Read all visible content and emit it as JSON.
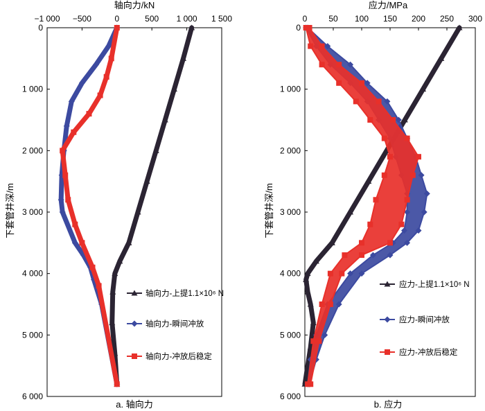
{
  "chart_data": [
    {
      "type": "line",
      "panel": "a",
      "title": "轴向力/kN",
      "xlabel": "轴向力/kN",
      "ylabel": "下套管井深/m",
      "caption": "a. 轴向力",
      "x_ticks": [
        "−1 000",
        "−500",
        "0",
        "500",
        "1 000",
        "1 500"
      ],
      "x_tick_values": [
        -1000,
        -500,
        0,
        500,
        1000,
        1500
      ],
      "y_ticks": [
        "0",
        "1 000",
        "2 000",
        "3 000",
        "4 000",
        "5 000",
        "6 000"
      ],
      "y_tick_values": [
        0,
        1000,
        2000,
        3000,
        4000,
        5000,
        6000
      ],
      "xlim": [
        -1000,
        1500
      ],
      "ylim": [
        0,
        6000
      ],
      "y_inverted": true,
      "x_axis_position": "top",
      "legend_position": "bottom-right",
      "series": [
        {
          "name": "轴向力-上提1.1×10⁶ N",
          "color": "#2b2433",
          "marker": "triangle",
          "x": [
            1070,
            950,
            820,
            690,
            560,
            430,
            300,
            170,
            40,
            -30,
            -60,
            -70,
            -30,
            0
          ],
          "y": [
            0,
            500,
            1000,
            1500,
            2000,
            2500,
            3000,
            3500,
            3800,
            4000,
            4300,
            4800,
            5300,
            5800
          ]
        },
        {
          "name": "轴向力-瞬间冲放",
          "color": "#3c4aa0",
          "marker": "diamond",
          "x": [
            0,
            -120,
            -300,
            -500,
            -650,
            -720,
            -760,
            -790,
            -800,
            -780,
            -600,
            -480,
            -380,
            -330,
            -220,
            0
          ],
          "y": [
            0,
            300,
            600,
            900,
            1200,
            1600,
            2000,
            2400,
            2800,
            3000,
            3500,
            3700,
            3900,
            4100,
            4500,
            5800
          ]
        },
        {
          "name": "轴向力-冲放后稳定",
          "color": "#e8302a",
          "marker": "square",
          "x": [
            0,
            -80,
            -150,
            -240,
            -400,
            -620,
            -780,
            -740,
            -700,
            -600,
            -500,
            -350,
            -260,
            0
          ],
          "y": [
            0,
            500,
            800,
            1100,
            1400,
            1700,
            2000,
            2400,
            2800,
            3200,
            3500,
            3900,
            4200,
            5800
          ]
        }
      ]
    },
    {
      "type": "line",
      "panel": "b",
      "title": "应力/MPa",
      "xlabel": "应力/MPa",
      "ylabel": "下套管井深/m",
      "caption": "b. 应力",
      "x_ticks": [
        "0",
        "50",
        "100",
        "150",
        "200",
        "250",
        "300"
      ],
      "x_tick_values": [
        0,
        50,
        100,
        150,
        200,
        250,
        300
      ],
      "y_ticks": [
        "0",
        "1 000",
        "2 000",
        "3 000",
        "4 000",
        "5 000",
        "6 000"
      ],
      "y_tick_values": [
        0,
        1000,
        2000,
        3000,
        4000,
        5000,
        6000
      ],
      "xlim": [
        0,
        300
      ],
      "ylim": [
        0,
        6000
      ],
      "y_inverted": true,
      "x_axis_position": "top",
      "legend_position": "bottom-right",
      "series": [
        {
          "name": "应力-上提1.1×10⁶ N",
          "color": "#2b2433",
          "marker": "triangle",
          "x": [
            272,
            240,
            208,
            176,
            144,
            112,
            80,
            48,
            20,
            5,
            2,
            5,
            10,
            15,
            10,
            5,
            0
          ],
          "y": [
            0,
            500,
            1000,
            1500,
            2000,
            2500,
            3000,
            3500,
            3800,
            4000,
            4100,
            4300,
            4500,
            4800,
            5200,
            5500,
            5800
          ]
        },
        {
          "name": "应力-瞬间冲放",
          "color": "#3c4aa0",
          "marker": "diamond",
          "x_left": [
            2,
            20,
            45,
            80,
            110,
            130,
            150,
            160,
            170,
            180,
            180,
            175,
            155,
            120,
            80,
            40,
            20,
            10,
            5
          ],
          "x_right": [
            5,
            40,
            80,
            110,
            145,
            165,
            180,
            195,
            205,
            215,
            210,
            200,
            180,
            150,
            100,
            60,
            35,
            20,
            8
          ],
          "y": [
            0,
            300,
            600,
            900,
            1200,
            1500,
            1800,
            2100,
            2400,
            2700,
            3000,
            3300,
            3500,
            3700,
            4000,
            4500,
            5000,
            5400,
            5800
          ]
        },
        {
          "name": "应力-冲放后稳定",
          "color": "#e8302a",
          "marker": "square",
          "x_left": [
            2,
            10,
            30,
            60,
            90,
            115,
            140,
            150,
            140,
            125,
            115,
            100,
            70,
            45,
            30,
            15,
            5
          ],
          "x_right": [
            8,
            30,
            60,
            100,
            130,
            155,
            180,
            200,
            190,
            180,
            170,
            150,
            100,
            65,
            45,
            25,
            10
          ],
          "y": [
            0,
            300,
            600,
            900,
            1200,
            1500,
            1800,
            2100,
            2400,
            2800,
            3200,
            3500,
            3700,
            4000,
            4500,
            5100,
            5800
          ]
        }
      ]
    }
  ]
}
